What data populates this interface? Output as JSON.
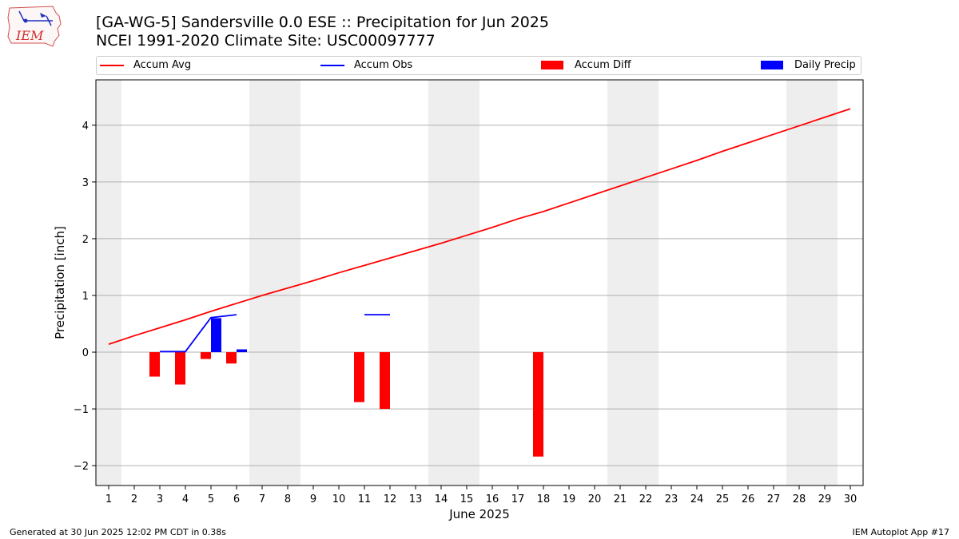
{
  "header": {
    "title": "[GA-WG-5] Sandersville 0.0 ESE :: Precipitation for Jun 2025",
    "subtitle": "NCEI 1991-2020 Climate Site: USC00097777",
    "logo_text": "IEM"
  },
  "legend": {
    "items": [
      {
        "label": "Accum Avg",
        "color": "#ff0000",
        "kind": "line"
      },
      {
        "label": "Accum Obs",
        "color": "#0000ff",
        "kind": "line"
      },
      {
        "label": "Accum Diff",
        "color": "#ff0000",
        "kind": "bar"
      },
      {
        "label": "Daily Precip",
        "color": "#0000ff",
        "kind": "bar"
      }
    ]
  },
  "footer": {
    "left": "Generated at 30 Jun 2025 12:02 PM CDT in 0.38s",
    "right": "IEM Autoplot App #17"
  },
  "chart_data": {
    "type": "bar",
    "xlabel": "June 2025",
    "ylabel": "Precipitation [inch]",
    "xlim": [
      0.5,
      30.5
    ],
    "ylim": [
      -2.35,
      4.8
    ],
    "yticks": [
      -2,
      -1,
      0,
      1,
      2,
      3,
      4
    ],
    "ytick_labels": [
      "−2",
      "−1",
      "0",
      "1",
      "2",
      "3",
      "4"
    ],
    "xticks": [
      1,
      2,
      3,
      4,
      5,
      6,
      7,
      8,
      9,
      10,
      11,
      12,
      13,
      14,
      15,
      16,
      17,
      18,
      19,
      20,
      21,
      22,
      23,
      24,
      25,
      26,
      27,
      28,
      29,
      30
    ],
    "grid": "y",
    "weekend_bands": [
      [
        0.5,
        1.5
      ],
      [
        6.5,
        8.5
      ],
      [
        13.5,
        15.5
      ],
      [
        20.5,
        22.5
      ],
      [
        27.5,
        29.5
      ]
    ],
    "weekend_color": "#eeeeee",
    "accum_avg": {
      "name": "Accum Avg",
      "color": "#ff0000",
      "x": [
        1,
        2,
        3,
        4,
        5,
        6,
        7,
        8,
        9,
        10,
        11,
        12,
        13,
        14,
        15,
        16,
        17,
        18,
        19,
        20,
        21,
        22,
        23,
        24,
        25,
        26,
        27,
        28,
        29,
        30
      ],
      "y": [
        0.14,
        0.29,
        0.43,
        0.57,
        0.72,
        0.86,
        1.0,
        1.13,
        1.26,
        1.4,
        1.53,
        1.66,
        1.79,
        1.92,
        2.06,
        2.2,
        2.35,
        2.48,
        2.63,
        2.78,
        2.93,
        3.08,
        3.23,
        3.38,
        3.54,
        3.69,
        3.84,
        3.99,
        4.14,
        4.29
      ]
    },
    "accum_obs": {
      "name": "Accum Obs",
      "color": "#0000ff",
      "segments": [
        {
          "x": [
            3,
            4,
            5,
            6
          ],
          "y": [
            0.01,
            0.01,
            0.61,
            0.66
          ]
        },
        {
          "x": [
            11,
            12
          ],
          "y": [
            0.66,
            0.66
          ]
        }
      ]
    },
    "accum_diff": {
      "name": "Accum Diff",
      "color": "#ff0000",
      "x": [
        3,
        4,
        5,
        6,
        11,
        12,
        18
      ],
      "y": [
        -0.43,
        -0.57,
        -0.12,
        -0.2,
        -0.88,
        -1.0,
        -1.84
      ]
    },
    "daily_precip": {
      "name": "Daily Precip",
      "color": "#0000ff",
      "x": [
        5,
        6
      ],
      "y": [
        0.6,
        0.05
      ]
    }
  }
}
